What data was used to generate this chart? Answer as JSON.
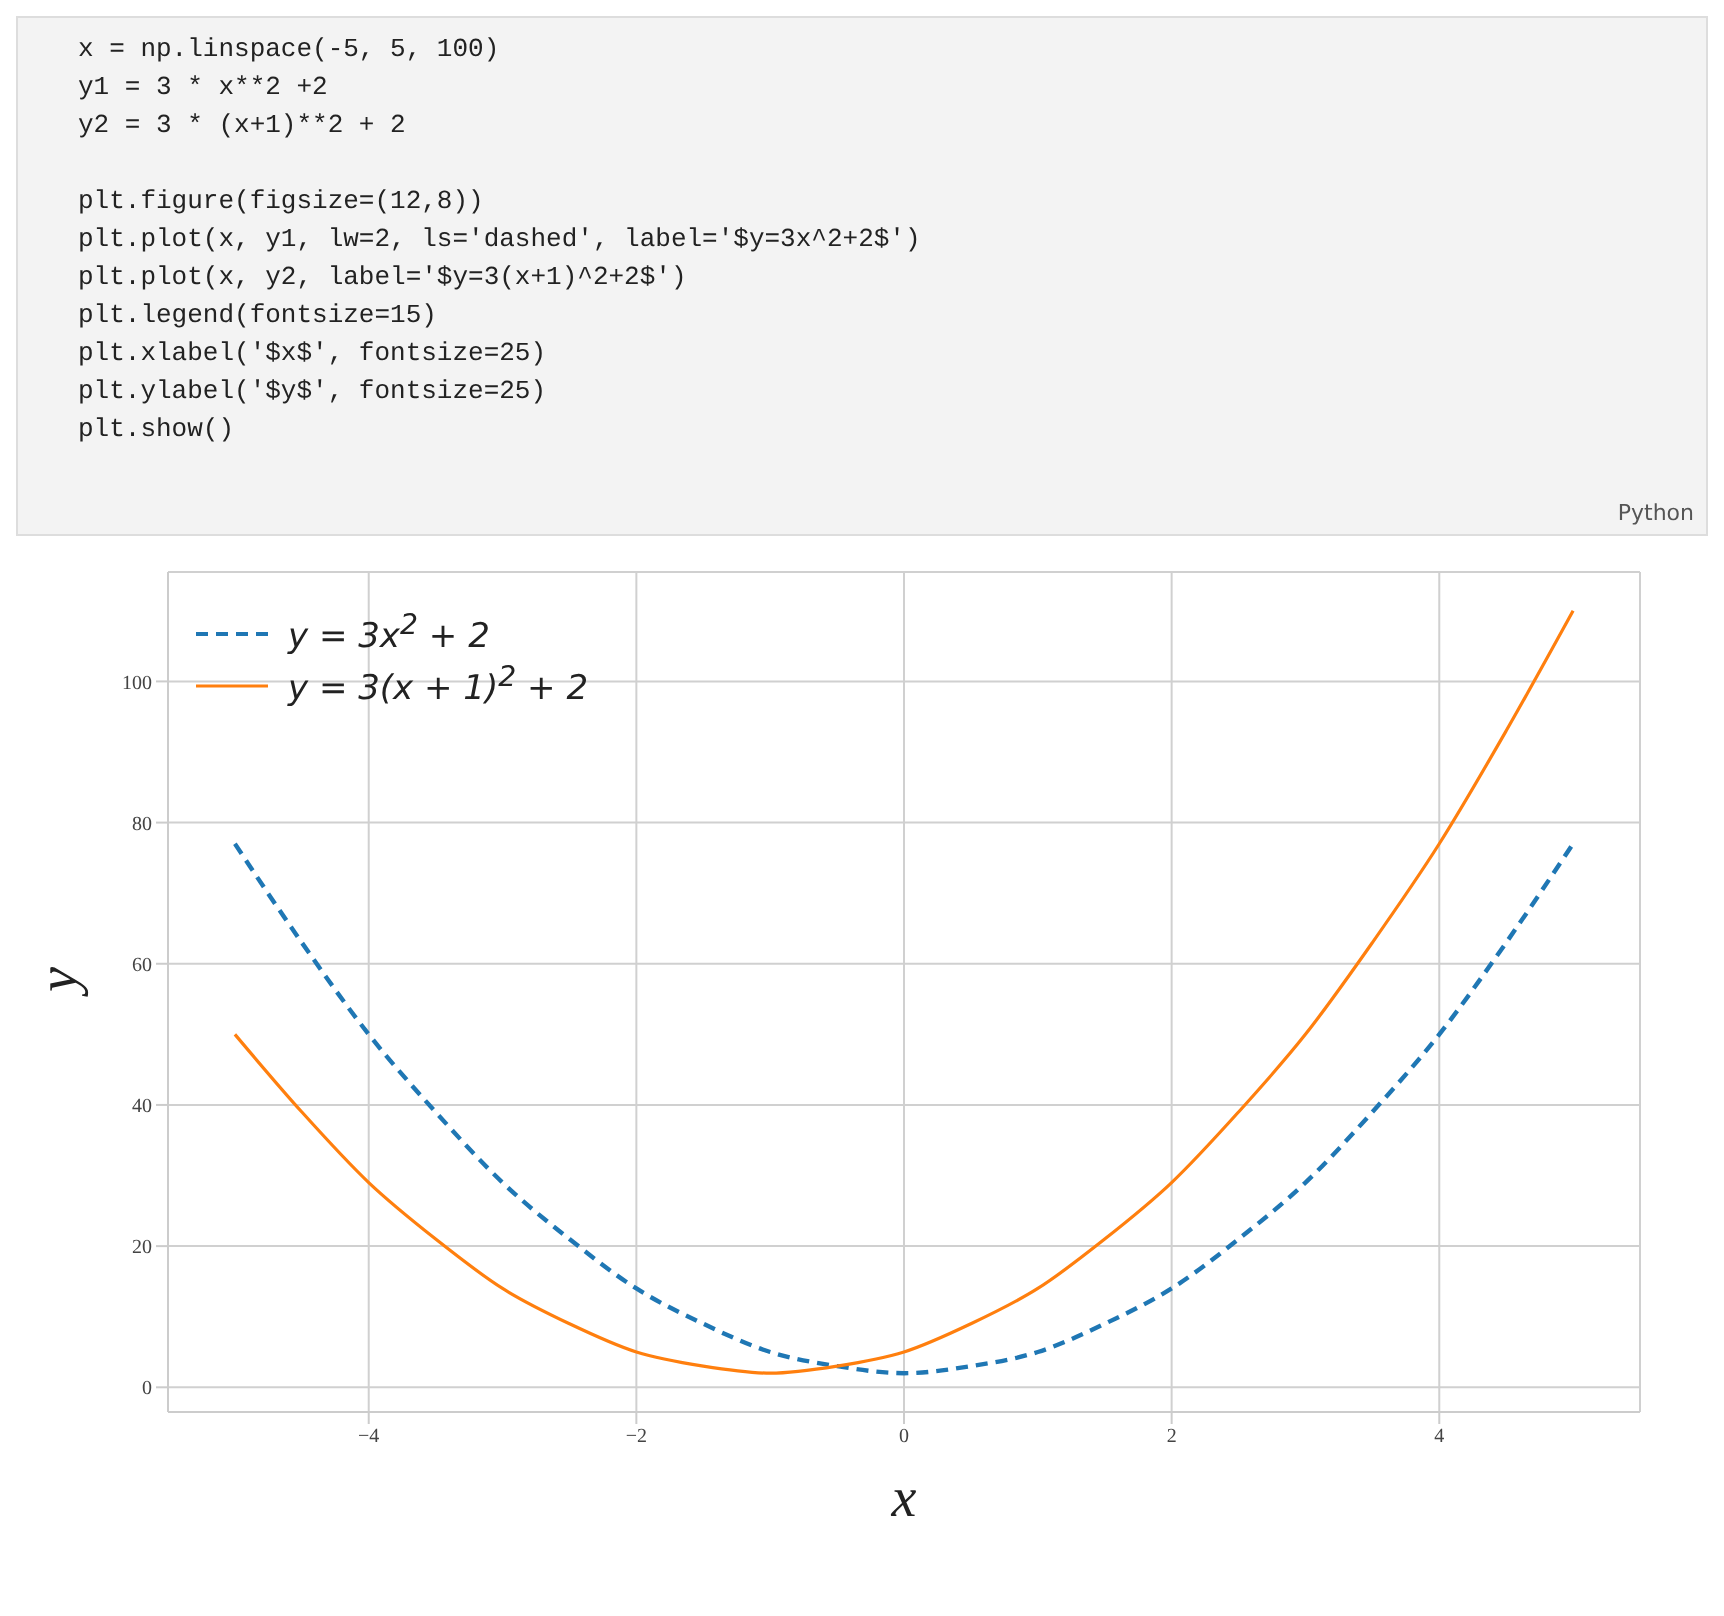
{
  "chart_data": {
    "type": "line",
    "annotations": [
      "x = np.linspace(-5, 5, 100)",
      "y1 = 3 * x**2 +2",
      "y2 = 3 * (x+1)**2 + 2",
      "plt.figure(figsize=(12,8))",
      "plt.plot(x, y1, lw=2, ls='dashed', label='$y=3x^2+2$')",
      "plt.plot(x, y2, label='$y=3(x+1)^2+2$')",
      "plt.legend(fontsize=15)",
      "plt.xlabel('$x$', fontsize=25)",
      "plt.ylabel('$y$', fontsize=25)",
      "plt.show()",
      "Python"
    ],
    "xlabel": "x",
    "ylabel": "y",
    "x": [
      -5,
      -4.5,
      -4,
      -3.5,
      -3,
      -2.5,
      -2,
      -1.5,
      -1,
      -0.5,
      0,
      0.5,
      1,
      1.5,
      2,
      2.5,
      3,
      3.5,
      4,
      4.5,
      5
    ],
    "series": [
      {
        "name": "y = 3x$^{2}$ + 2",
        "color": "#1f77b4",
        "line_style": "dashed",
        "values": [
          77,
          63,
          50,
          39,
          29,
          21,
          14,
          9,
          5,
          3,
          2,
          3,
          5,
          9,
          14,
          21,
          29,
          39,
          50,
          63,
          77
        ]
      },
      {
        "name": "y = 3(x + 1)$^{2}$ + 2",
        "color": "#ff7f0e",
        "line_style": "solid",
        "values": [
          50,
          39,
          29,
          21,
          14,
          9,
          5,
          3,
          2,
          3,
          5,
          9,
          14,
          21,
          29,
          39,
          50,
          63,
          77,
          93,
          110
        ]
      }
    ],
    "xlim": [
      -5.5,
      5.5
    ],
    "ylim": [
      -3.5,
      115.5
    ],
    "xticks": [
      {
        "value": -4,
        "label": "−4"
      },
      {
        "value": -2,
        "label": "−2"
      },
      0,
      2,
      4
    ],
    "yticks": [
      0,
      20,
      40,
      60,
      80,
      100
    ],
    "grid": true,
    "legend": "top left",
    "marker": "none"
  }
}
